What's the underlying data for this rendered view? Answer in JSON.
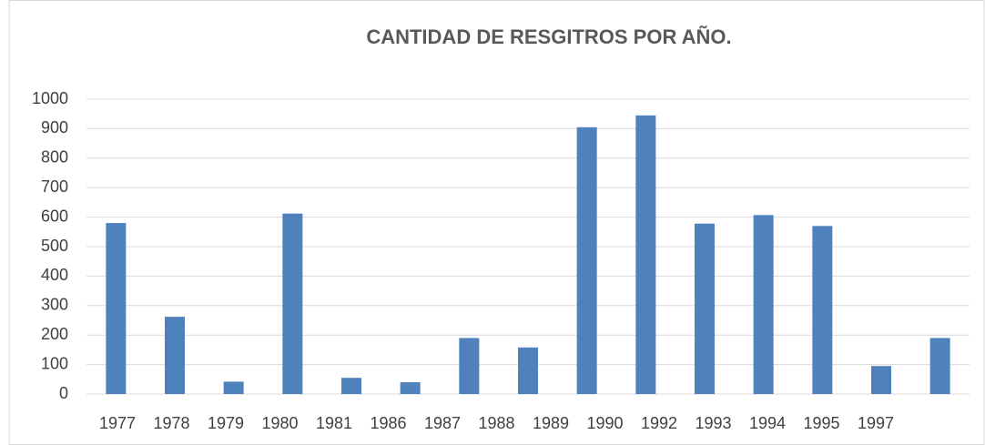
{
  "chart_data": {
    "type": "bar",
    "title": "CANTIDAD DE RESGITROS POR AÑO.",
    "categories": [
      "1977",
      "1978",
      "1979",
      "1980",
      "1981",
      "1986",
      "1987",
      "1988",
      "1989",
      "1990",
      "1992",
      "1993",
      "1994",
      "1995",
      "1997"
    ],
    "values": [
      580,
      262,
      42,
      612,
      55,
      40,
      190,
      158,
      905,
      945,
      578,
      607,
      570,
      95,
      190
    ],
    "color": "#4f81bd",
    "ylim": [
      0,
      1000
    ],
    "yticks": [
      0,
      100,
      200,
      300,
      400,
      500,
      600,
      700,
      800,
      900,
      1000
    ],
    "grid": true
  }
}
